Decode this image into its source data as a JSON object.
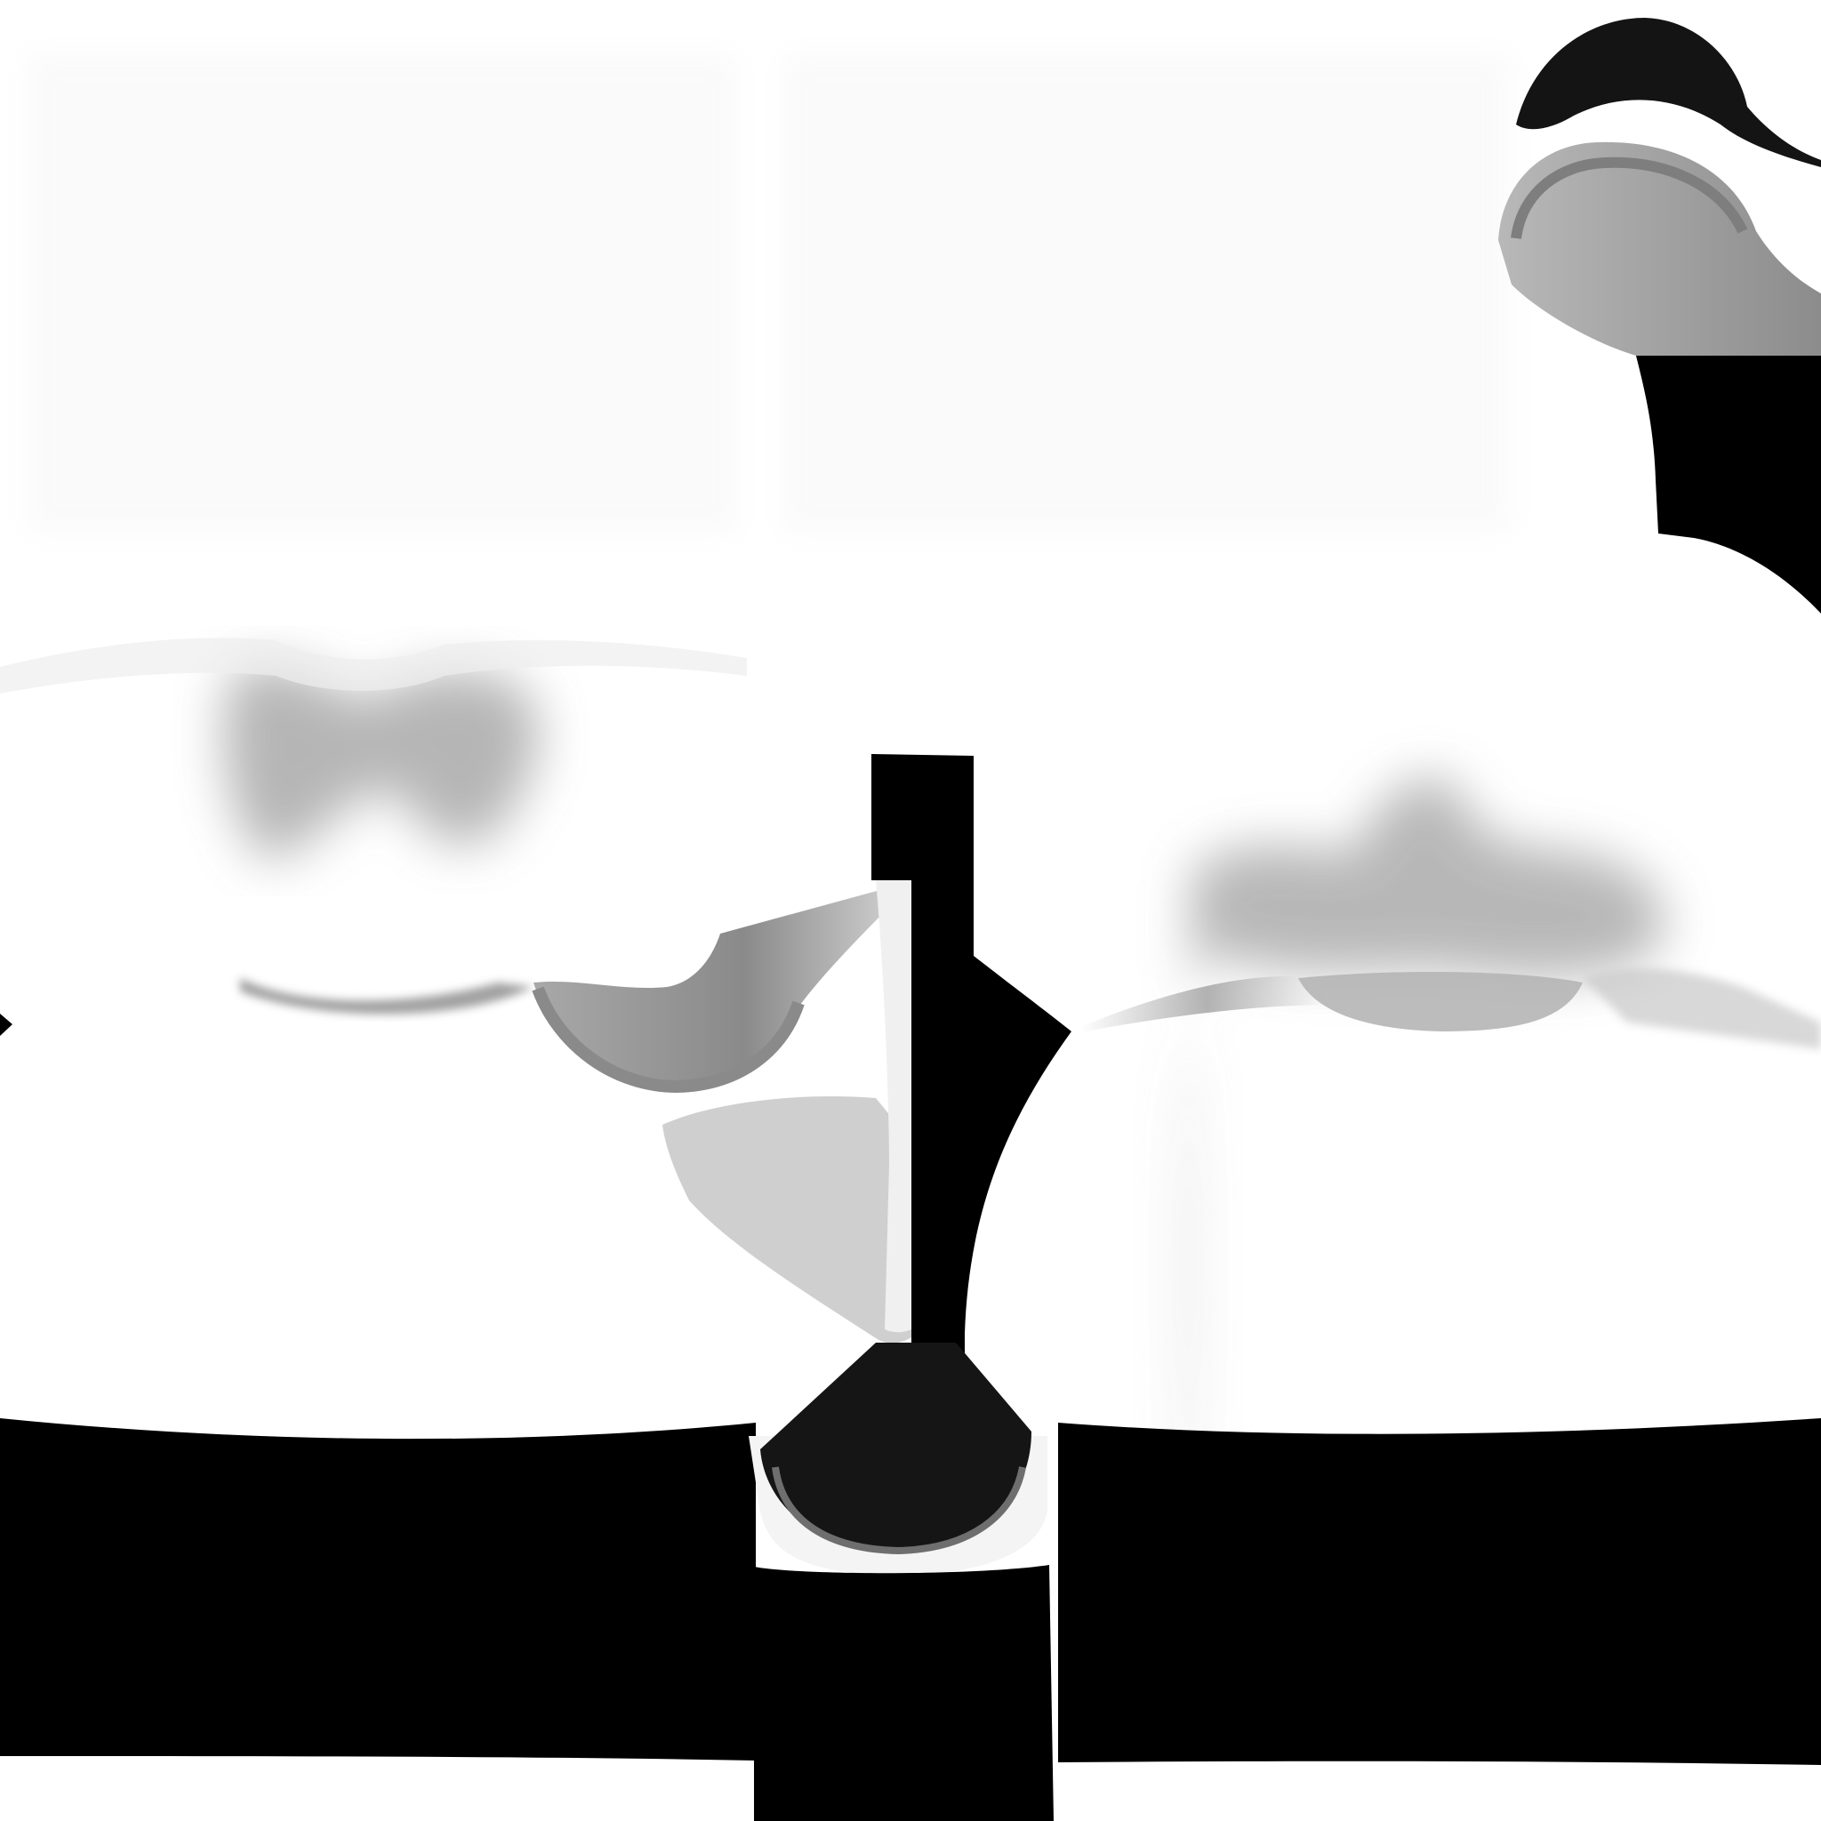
{
  "texture": {
    "kind": "grayscale clothing texture map",
    "colors": {
      "background": "#ffffff",
      "solid": "#000000",
      "mid_gray": "#9a9a9a",
      "light_gray": "#cfcfcf",
      "pale_gray": "#e6e6e6",
      "dark": "#141414"
    }
  }
}
